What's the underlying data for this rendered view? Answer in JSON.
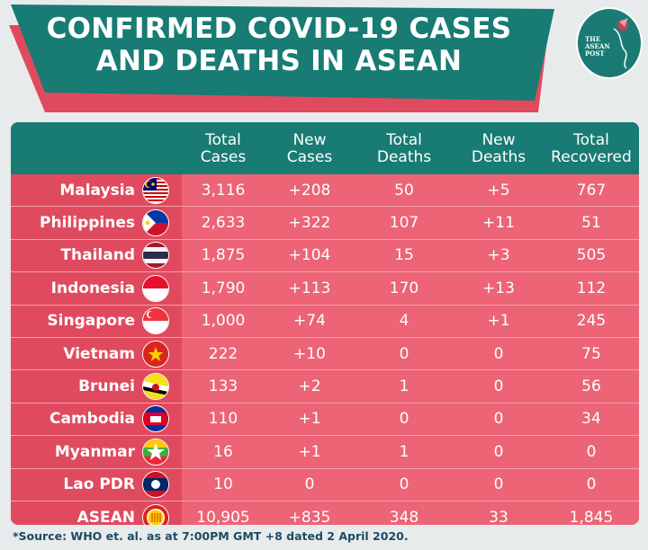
{
  "header": {
    "title_line1": "CONFIRMED COVID-19 CASES",
    "title_line2": "AND DEATHS IN ASEAN",
    "logo": {
      "line1": "THE",
      "line2": "ASEAN",
      "line3": "POST",
      "icon": "hummingbird-logo-icon"
    },
    "colors": {
      "teal": "#187b74",
      "red": "#e04a5e",
      "pink": "#ec6476",
      "background": "#e8ebec"
    }
  },
  "table": {
    "columns": [
      {
        "line1": "Total",
        "line2": "Cases"
      },
      {
        "line1": "New",
        "line2": "Cases"
      },
      {
        "line1": "Total",
        "line2": "Deaths"
      },
      {
        "line1": "New",
        "line2": "Deaths"
      },
      {
        "line1": "Total",
        "line2": "Recovered"
      }
    ],
    "rows": [
      {
        "country": "Malaysia",
        "flag": "malaysia-flag-icon",
        "total_cases": "3,116",
        "new_cases": "+208",
        "total_deaths": "50",
        "new_deaths": "+5",
        "total_recovered": "767"
      },
      {
        "country": "Philippines",
        "flag": "philippines-flag-icon",
        "total_cases": "2,633",
        "new_cases": "+322",
        "total_deaths": "107",
        "new_deaths": "+11",
        "total_recovered": "51"
      },
      {
        "country": "Thailand",
        "flag": "thailand-flag-icon",
        "total_cases": "1,875",
        "new_cases": "+104",
        "total_deaths": "15",
        "new_deaths": "+3",
        "total_recovered": "505"
      },
      {
        "country": "Indonesia",
        "flag": "indonesia-flag-icon",
        "total_cases": "1,790",
        "new_cases": "+113",
        "total_deaths": "170",
        "new_deaths": "+13",
        "total_recovered": "112"
      },
      {
        "country": "Singapore",
        "flag": "singapore-flag-icon",
        "total_cases": "1,000",
        "new_cases": "+74",
        "total_deaths": "4",
        "new_deaths": "+1",
        "total_recovered": "245"
      },
      {
        "country": "Vietnam",
        "flag": "vietnam-flag-icon",
        "total_cases": "222",
        "new_cases": "+10",
        "total_deaths": "0",
        "new_deaths": "0",
        "total_recovered": "75"
      },
      {
        "country": "Brunei",
        "flag": "brunei-flag-icon",
        "total_cases": "133",
        "new_cases": "+2",
        "total_deaths": "1",
        "new_deaths": "0",
        "total_recovered": "56"
      },
      {
        "country": "Cambodia",
        "flag": "cambodia-flag-icon",
        "total_cases": "110",
        "new_cases": "+1",
        "total_deaths": "0",
        "new_deaths": "0",
        "total_recovered": "34"
      },
      {
        "country": "Myanmar",
        "flag": "myanmar-flag-icon",
        "total_cases": "16",
        "new_cases": "+1",
        "total_deaths": "1",
        "new_deaths": "0",
        "total_recovered": "0"
      },
      {
        "country": "Lao PDR",
        "flag": "laos-flag-icon",
        "total_cases": "10",
        "new_cases": "0",
        "total_deaths": "0",
        "new_deaths": "0",
        "total_recovered": "0"
      },
      {
        "country": "ASEAN",
        "flag": "asean-emblem-icon",
        "total_cases": "10,905",
        "new_cases": "+835",
        "total_deaths": "348",
        "new_deaths": "33",
        "total_recovered": "1,845"
      }
    ]
  },
  "footer": {
    "source": "*Source: WHO et. al. as at 7:00PM GMT +8 dated 2 April 2020."
  }
}
